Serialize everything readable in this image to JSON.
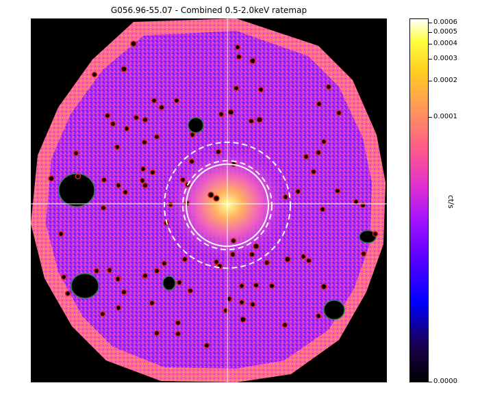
{
  "title": "G056.96-55.07 - Combined 0.5-2.0keV ratemap",
  "colorbar": {
    "label": "ct/s",
    "ticks": [
      "0.0006",
      "0.0005",
      "0.0004",
      "0.0003",
      "0.0002",
      "0.0001",
      "0.0000"
    ]
  }
}
